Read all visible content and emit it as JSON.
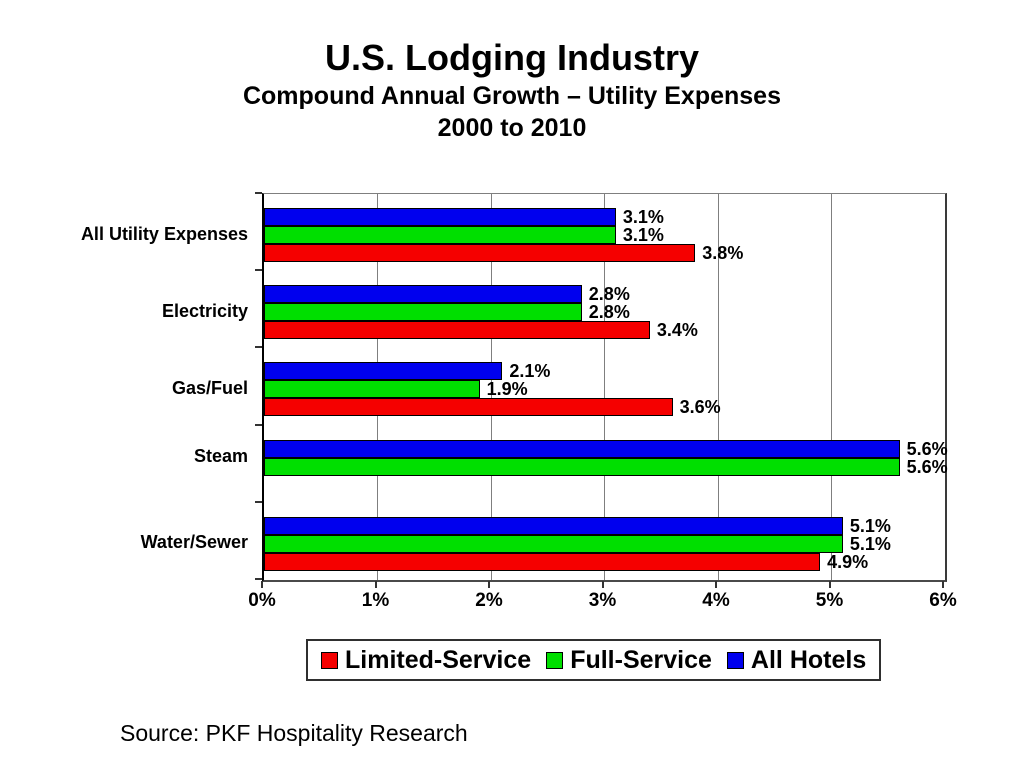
{
  "title": {
    "line1": "U.S. Lodging Industry",
    "line2": "Compound Annual Growth – Utility Expenses",
    "line3": "2000 to 2010"
  },
  "source": "Source: PKF Hospitality Research",
  "chart_data": {
    "type": "bar",
    "orientation": "horizontal",
    "title": "U.S. Lodging Industry — Compound Annual Growth – Utility Expenses — 2000 to 2010",
    "categories": [
      "All Utility Expenses",
      "Electricity",
      "Gas/Fuel",
      "Steam",
      "Water/Sewer"
    ],
    "series": [
      {
        "name": "All Hotels",
        "color": "#0000EE",
        "values": [
          3.1,
          2.8,
          2.1,
          5.6,
          5.1
        ],
        "labels": [
          "3.1%",
          "2.8%",
          "2.1%",
          "5.6%",
          "5.1%"
        ]
      },
      {
        "name": "Full-Service",
        "color": "#00DF00",
        "values": [
          3.1,
          2.8,
          1.9,
          5.6,
          5.1
        ],
        "labels": [
          "3.1%",
          "2.8%",
          "1.9%",
          "5.6%",
          "5.1%"
        ]
      },
      {
        "name": "Limited-Service",
        "color": "#F50000",
        "values": [
          3.8,
          3.4,
          3.6,
          null,
          4.9
        ],
        "labels": [
          "3.8%",
          "3.4%",
          "3.6%",
          null,
          "4.9%"
        ]
      }
    ],
    "x_ticks": [
      "0%",
      "1%",
      "2%",
      "3%",
      "4%",
      "5%",
      "6%"
    ],
    "xlim": [
      0,
      6
    ],
    "grid": true,
    "legend_position": "bottom",
    "legend": [
      {
        "label": "Limited-Service",
        "color": "#F50000"
      },
      {
        "label": "Full-Service",
        "color": "#00DF00"
      },
      {
        "label": "All Hotels",
        "color": "#0000EE"
      }
    ]
  }
}
